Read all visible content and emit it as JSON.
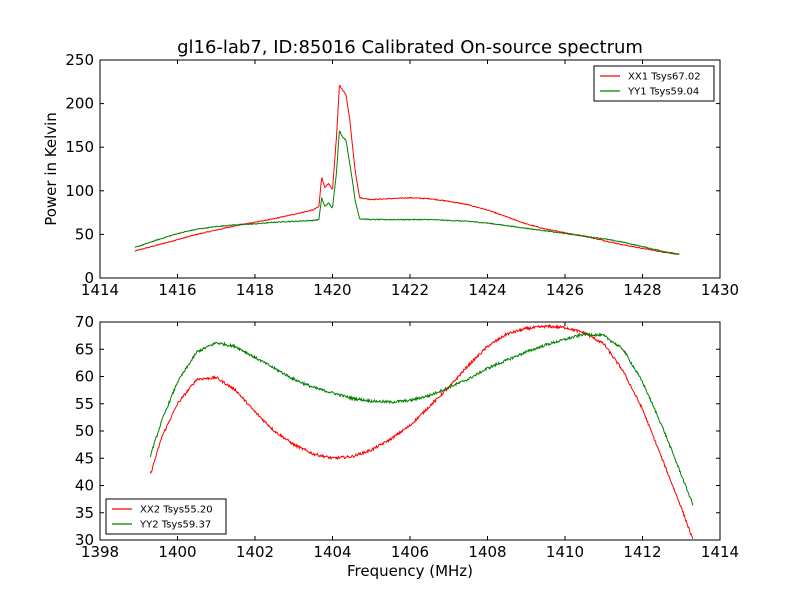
{
  "title": "gl16-lab7, ID:85016 Calibrated On-source spectrum",
  "chart_data": [
    {
      "type": "line",
      "ylabel": "Power in Kelvin",
      "xlabel": "",
      "xlim": [
        1414,
        1430
      ],
      "ylim": [
        0,
        250
      ],
      "xticks": [
        1414,
        1416,
        1418,
        1420,
        1422,
        1424,
        1426,
        1428,
        1430
      ],
      "yticks": [
        0,
        50,
        100,
        150,
        200,
        250
      ],
      "legend_position": "top-right",
      "series": [
        {
          "name": "XX1 Tsys67.02",
          "color": "#ff0000",
          "x": [
            1414.9,
            1415.5,
            1416.0,
            1416.5,
            1417.0,
            1417.5,
            1418.0,
            1418.5,
            1419.0,
            1419.5,
            1419.65,
            1419.72,
            1419.8,
            1419.9,
            1420.0,
            1420.1,
            1420.18,
            1420.25,
            1420.35,
            1420.45,
            1420.52,
            1420.58,
            1420.7,
            1421.0,
            1421.5,
            1422.0,
            1422.5,
            1423.0,
            1423.5,
            1424.0,
            1424.5,
            1425.0,
            1425.5,
            1426.0,
            1426.5,
            1427.0,
            1427.5,
            1428.0,
            1428.5,
            1428.95
          ],
          "y": [
            31,
            38,
            44,
            50,
            55,
            60,
            64,
            68,
            73,
            78,
            82,
            116,
            104,
            108,
            101,
            160,
            222,
            216,
            210,
            180,
            150,
            125,
            92,
            90,
            91,
            92,
            91,
            88,
            84,
            78,
            70,
            62,
            56,
            52,
            48,
            43,
            38,
            34,
            30,
            27
          ]
        },
        {
          "name": "YY1 Tsys59.04",
          "color": "#008000",
          "x": [
            1414.9,
            1415.5,
            1416.0,
            1416.5,
            1417.0,
            1417.5,
            1418.0,
            1418.5,
            1419.0,
            1419.5,
            1419.65,
            1419.72,
            1419.8,
            1419.9,
            1420.0,
            1420.1,
            1420.18,
            1420.25,
            1420.35,
            1420.45,
            1420.52,
            1420.58,
            1420.7,
            1421.0,
            1421.5,
            1422.0,
            1422.5,
            1423.0,
            1423.5,
            1424.0,
            1424.5,
            1425.0,
            1425.5,
            1426.0,
            1426.5,
            1427.0,
            1427.5,
            1428.0,
            1428.5,
            1428.95
          ],
          "y": [
            35,
            44,
            51,
            56,
            59,
            61,
            62,
            64,
            65,
            66,
            67,
            92,
            82,
            86,
            80,
            120,
            170,
            162,
            158,
            130,
            110,
            90,
            68,
            67,
            67,
            67,
            67,
            66,
            65,
            63,
            60,
            57,
            54,
            51,
            48,
            45,
            41,
            36,
            31,
            27
          ]
        }
      ]
    },
    {
      "type": "line",
      "xlabel": "Frequency (MHz)",
      "ylabel": "",
      "xlim": [
        1398,
        1414
      ],
      "ylim": [
        30,
        70
      ],
      "xticks": [
        1398,
        1400,
        1402,
        1404,
        1406,
        1408,
        1410,
        1412,
        1414
      ],
      "yticks": [
        30,
        35,
        40,
        45,
        50,
        55,
        60,
        65,
        70
      ],
      "legend_position": "bottom-left",
      "series": [
        {
          "name": "XX2 Tsys55.20",
          "color": "#ff0000",
          "x": [
            1399.3,
            1399.6,
            1400.0,
            1400.5,
            1401.0,
            1401.5,
            1402.0,
            1402.5,
            1403.0,
            1403.5,
            1404.0,
            1404.5,
            1405.0,
            1405.5,
            1406.0,
            1406.5,
            1407.0,
            1407.5,
            1408.0,
            1408.5,
            1409.0,
            1409.5,
            1410.0,
            1410.5,
            1411.0,
            1411.5,
            1412.0,
            1412.5,
            1413.0,
            1413.3
          ],
          "y": [
            42,
            49,
            55,
            59.5,
            59.8,
            57.5,
            53.5,
            50,
            47.5,
            45.8,
            45,
            45.3,
            46.5,
            48.5,
            51,
            54.5,
            58,
            62,
            65.5,
            67.8,
            68.8,
            69.2,
            69,
            68,
            66,
            61,
            54,
            45,
            36,
            30
          ]
        },
        {
          "name": "YY2 Tsys59.37",
          "color": "#008000",
          "x": [
            1399.3,
            1399.6,
            1400.0,
            1400.5,
            1401.0,
            1401.5,
            1402.0,
            1402.5,
            1403.0,
            1403.5,
            1404.0,
            1404.5,
            1405.0,
            1405.5,
            1406.0,
            1406.5,
            1407.0,
            1407.5,
            1408.0,
            1408.5,
            1409.0,
            1409.5,
            1410.0,
            1410.5,
            1411.0,
            1411.5,
            1412.0,
            1412.5,
            1413.0,
            1413.3
          ],
          "y": [
            45.5,
            52,
            59,
            64.5,
            66.2,
            65.5,
            63.5,
            61.5,
            59.5,
            58,
            57,
            56,
            55.5,
            55.3,
            55.6,
            56.5,
            58,
            59.5,
            61.5,
            63,
            64.5,
            65.8,
            66.8,
            67.8,
            67.5,
            65,
            59,
            51,
            42,
            36.5
          ]
        }
      ]
    }
  ]
}
